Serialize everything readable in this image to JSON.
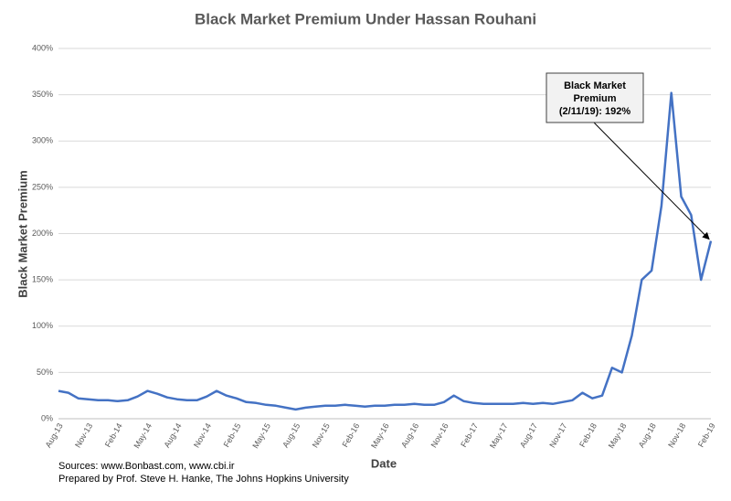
{
  "chart_data": {
    "type": "line",
    "title": "Black Market Premium Under Hassan Rouhani",
    "x_label": "Date",
    "y_label": "Black Market Premium",
    "x": [
      "Aug-13",
      "Sep-13",
      "Oct-13",
      "Nov-13",
      "Dec-13",
      "Jan-14",
      "Feb-14",
      "Mar-14",
      "Apr-14",
      "May-14",
      "Jun-14",
      "Jul-14",
      "Aug-14",
      "Sep-14",
      "Oct-14",
      "Nov-14",
      "Dec-14",
      "Jan-15",
      "Feb-15",
      "Mar-15",
      "Apr-15",
      "May-15",
      "Jun-15",
      "Jul-15",
      "Aug-15",
      "Sep-15",
      "Oct-15",
      "Nov-15",
      "Dec-15",
      "Jan-16",
      "Feb-16",
      "Mar-16",
      "Apr-16",
      "May-16",
      "Jun-16",
      "Jul-16",
      "Aug-16",
      "Sep-16",
      "Oct-16",
      "Nov-16",
      "Dec-16",
      "Jan-17",
      "Feb-17",
      "Mar-17",
      "Apr-17",
      "May-17",
      "Jun-17",
      "Jul-17",
      "Aug-17",
      "Sep-17",
      "Oct-17",
      "Nov-17",
      "Dec-17",
      "Jan-18",
      "Feb-18",
      "Mar-18",
      "Apr-18",
      "May-18",
      "Jun-18",
      "Jul-18",
      "Aug-18",
      "Sep-18",
      "Oct-18",
      "Nov-18",
      "Dec-18",
      "Jan-19",
      "Feb-19"
    ],
    "values": [
      30,
      28,
      22,
      21,
      20,
      20,
      19,
      20,
      24,
      30,
      27,
      23,
      21,
      20,
      20,
      24,
      30,
      25,
      22,
      18,
      17,
      15,
      14,
      12,
      10,
      12,
      13,
      14,
      14,
      15,
      14,
      13,
      14,
      14,
      15,
      15,
      16,
      15,
      15,
      18,
      25,
      19,
      17,
      16,
      16,
      16,
      16,
      17,
      16,
      17,
      16,
      18,
      20,
      28,
      22,
      25,
      55,
      50,
      90,
      150,
      160,
      230,
      352,
      240,
      220,
      150,
      192
    ],
    "color": "#4472c4",
    "xticks": [
      "Aug-13",
      "Nov-13",
      "Feb-14",
      "May-14",
      "Aug-14",
      "Nov-14",
      "Feb-15",
      "May-15",
      "Aug-15",
      "Nov-15",
      "Feb-16",
      "May-16",
      "Aug-16",
      "Nov-16",
      "Feb-17",
      "May-17",
      "Aug-17",
      "Nov-17",
      "Feb-18",
      "May-18",
      "Aug-18",
      "Nov-18",
      "Feb-19"
    ],
    "ylim": [
      0,
      400
    ],
    "yticks": [
      {
        "value": 0,
        "label": "0%"
      },
      {
        "value": 50,
        "label": "50%"
      },
      {
        "value": 100,
        "label": "100%"
      },
      {
        "value": 150,
        "label": "150%"
      },
      {
        "value": 200,
        "label": "200%"
      },
      {
        "value": 250,
        "label": "250%"
      },
      {
        "value": 300,
        "label": "300%"
      },
      {
        "value": 350,
        "label": "350%"
      },
      {
        "value": 400,
        "label": "400%"
      }
    ],
    "grid": true,
    "annotation": [
      "Black Market",
      "Premium",
      "(2/11/19): 192%"
    ],
    "sources": [
      "Sources: www.Bonbast.com, www.cbi.ir",
      "Prepared by Prof. Steve H. Hanke, The Johns Hopkins University"
    ]
  }
}
